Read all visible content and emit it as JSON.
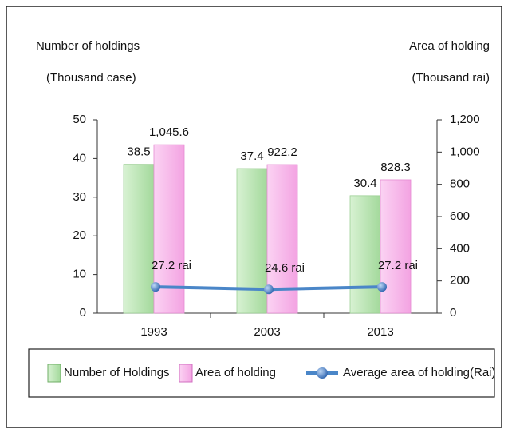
{
  "chart_data": {
    "type": "bar",
    "y_label_line1": "Number of holdings",
    "y_label_line2": "(Thousand case)",
    "y2_label_line1": "Area of holding",
    "y2_label_line2": "(Thousand rai)",
    "categories": [
      "1993",
      "2003",
      "2013"
    ],
    "series": [
      {
        "name": "Number of Holdings",
        "color": "#b5e3ae",
        "values": [
          38.5,
          37.4,
          30.4
        ]
      },
      {
        "name": "Area of holding",
        "color": "#f8b6ea",
        "axis": "y2",
        "values": [
          1045.6,
          922.2,
          828.3
        ],
        "value_labels": [
          "1,045.6",
          "922.2",
          "828.3"
        ]
      },
      {
        "name": "Average area of holding(Rai)",
        "color": "#4a86c8",
        "type": "line",
        "axis": "y3",
        "values": [
          27.2,
          24.6,
          27.2
        ],
        "value_labels": [
          "27.2 rai",
          "24.6 rai",
          "27.2 rai"
        ]
      }
    ],
    "ylim": [
      0,
      50
    ],
    "yticks": [
      0,
      10,
      20,
      30,
      40,
      50
    ],
    "y2lim": [
      0,
      1200
    ],
    "y2ticks": [
      0,
      200,
      400,
      600,
      800,
      {
        "value": 1000,
        "label": "1,000"
      },
      {
        "value": 1200,
        "label": "1,200"
      }
    ],
    "y3lim": [
      0,
      200
    ]
  }
}
